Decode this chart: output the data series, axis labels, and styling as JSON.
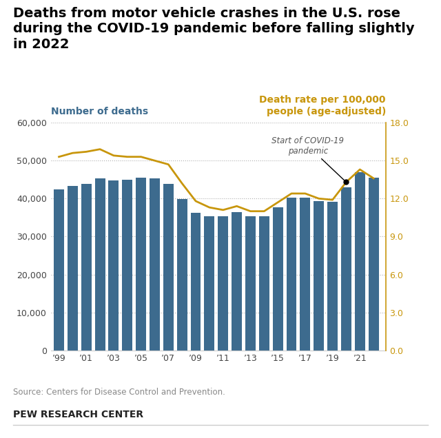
{
  "years": [
    1999,
    2000,
    2001,
    2002,
    2003,
    2004,
    2005,
    2006,
    2007,
    2008,
    2009,
    2010,
    2011,
    2012,
    2013,
    2014,
    2015,
    2016,
    2017,
    2018,
    2019,
    2020,
    2021,
    2022
  ],
  "deaths": [
    42401,
    43354,
    43788,
    45380,
    44757,
    44933,
    45520,
    45316,
    43945,
    39790,
    36216,
    35332,
    35303,
    36415,
    35369,
    35398,
    37757,
    40327,
    40231,
    39404,
    39107,
    42939,
    46980,
    45522
  ],
  "death_rate": [
    15.3,
    15.6,
    15.7,
    15.9,
    15.4,
    15.3,
    15.3,
    15.0,
    14.7,
    13.2,
    11.8,
    11.3,
    11.1,
    11.4,
    11.0,
    11.0,
    11.7,
    12.4,
    12.4,
    12.0,
    11.9,
    13.3,
    14.3,
    13.6
  ],
  "bar_color": "#3d6b8e",
  "line_color": "#c8960c",
  "ylabel_left": "Number of deaths",
  "ylabel_right": "Death rate per 100,000\npeople (age-adjusted)",
  "ylabel_left_color": "#3d6b8e",
  "ylabel_right_color": "#c8960c",
  "title_text": "Deaths from motor vehicle crashes in the U.S. rose\nduring the COVID-19 pandemic before falling slightly\nin 2022",
  "source_text": "Source: Centers for Disease Control and Prevention.",
  "footer_text": "PEW RESEARCH CENTER",
  "ylim_left": [
    0,
    60000
  ],
  "ylim_right": [
    0,
    18.0
  ],
  "yticks_left": [
    0,
    10000,
    20000,
    30000,
    40000,
    50000,
    60000
  ],
  "yticks_right": [
    0.0,
    3.0,
    6.0,
    9.0,
    12.0,
    15.0,
    18.0
  ],
  "annotation_text": "Start of COVID-19\npandemic",
  "annotation_year": 2020,
  "annotation_rate": 13.3,
  "bg_color": "#ffffff",
  "grid_color": "#b0b0b0",
  "xtick_years": [
    1999,
    2001,
    2003,
    2005,
    2007,
    2009,
    2011,
    2013,
    2015,
    2017,
    2019,
    2021
  ]
}
